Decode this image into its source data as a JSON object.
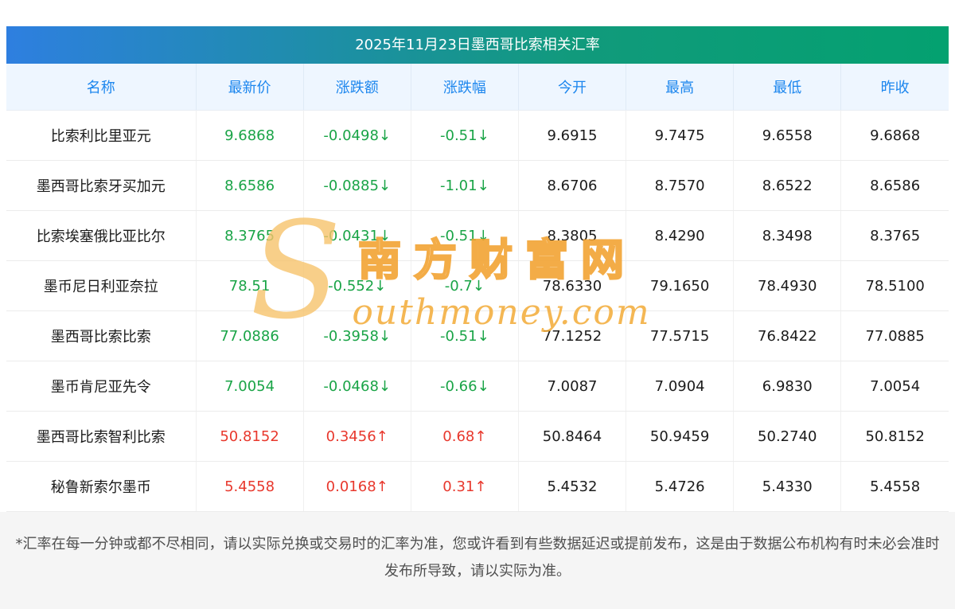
{
  "title": "2025年11月23日墨西哥比索相关汇率",
  "table": {
    "headers": [
      "名称",
      "最新价",
      "涨跌额",
      "涨跌幅",
      "今开",
      "最高",
      "最低",
      "昨收"
    ],
    "rows": [
      {
        "name": "比索利比里亚元",
        "latest": "9.6868",
        "change": "-0.0498↓",
        "pct": "-0.51↓",
        "open": "9.6915",
        "high": "9.7475",
        "low": "9.6558",
        "prev": "9.6868",
        "trend": "down"
      },
      {
        "name": "墨西哥比索牙买加元",
        "latest": "8.6586",
        "change": "-0.0885↓",
        "pct": "-1.01↓",
        "open": "8.6706",
        "high": "8.7570",
        "low": "8.6522",
        "prev": "8.6586",
        "trend": "down"
      },
      {
        "name": "比索埃塞俄比亚比尔",
        "latest": "8.3765",
        "change": "-0.0431↓",
        "pct": "-0.51↓",
        "open": "8.3805",
        "high": "8.4290",
        "low": "8.3498",
        "prev": "8.3765",
        "trend": "down"
      },
      {
        "name": "墨币尼日利亚奈拉",
        "latest": "78.51",
        "change": "-0.552↓",
        "pct": "-0.7↓",
        "open": "78.6330",
        "high": "79.1650",
        "low": "78.4930",
        "prev": "78.5100",
        "trend": "down"
      },
      {
        "name": "墨西哥比索比索",
        "latest": "77.0886",
        "change": "-0.3958↓",
        "pct": "-0.51↓",
        "open": "77.1252",
        "high": "77.5715",
        "low": "76.8422",
        "prev": "77.0885",
        "trend": "down"
      },
      {
        "name": "墨币肯尼亚先令",
        "latest": "7.0054",
        "change": "-0.0468↓",
        "pct": "-0.66↓",
        "open": "7.0087",
        "high": "7.0904",
        "low": "6.9830",
        "prev": "7.0054",
        "trend": "down"
      },
      {
        "name": "墨西哥比索智利比索",
        "latest": "50.8152",
        "change": "0.3456↑",
        "pct": "0.68↑",
        "open": "50.8464",
        "high": "50.9459",
        "low": "50.2740",
        "prev": "50.8152",
        "trend": "up"
      },
      {
        "name": "秘鲁新索尔墨币",
        "latest": "5.4558",
        "change": "0.0168↑",
        "pct": "0.31↑",
        "open": "5.4532",
        "high": "5.4726",
        "low": "5.4330",
        "prev": "5.4558",
        "trend": "up"
      }
    ]
  },
  "watermark": {
    "logo": "S",
    "cn": "南方财富网",
    "en": "outhmoney.com"
  },
  "footer": "*汇率在每一分钟或都不尽相同，请以实际兑换或交易时的汇率为准，您或许看到有些数据延迟或提前发布，这是由于数据公布机构有时未必会准时发布所导致，请以实际为准。",
  "colors": {
    "title_gradient_start": "#2e7fe0",
    "title_gradient_end": "#04a170",
    "header_bg": "#eef6ff",
    "header_text": "#1c86ee",
    "down_green": "#1aa447",
    "up_red": "#e8382d",
    "watermark_orange": "#f2a12e"
  }
}
